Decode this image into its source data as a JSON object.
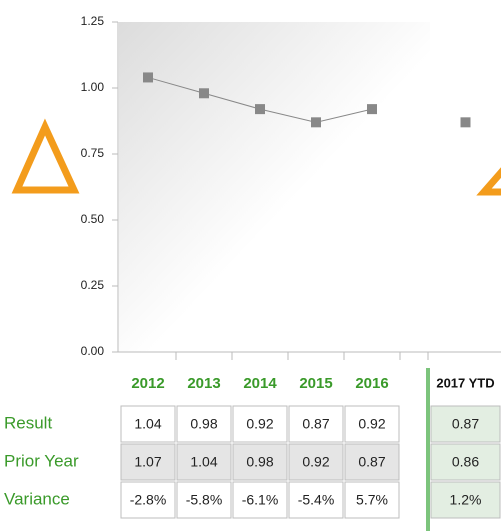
{
  "chart_data": {
    "type": "line",
    "categories": [
      "2012",
      "2013",
      "2014",
      "2015",
      "2016",
      "2017 YTD"
    ],
    "values": [
      1.04,
      0.98,
      0.92,
      0.87,
      0.92,
      0.87
    ],
    "color": "#888888",
    "ylim": [
      0,
      1.25
    ],
    "yticks": [
      {
        "value": 0,
        "label": "0.00"
      },
      {
        "value": 0.25,
        "label": "0.25"
      },
      {
        "value": 0.5,
        "label": "0.50"
      },
      {
        "value": 0.75,
        "label": "0.75"
      },
      {
        "value": 1,
        "label": "1.00"
      },
      {
        "value": 1.25,
        "label": "1.25"
      }
    ]
  },
  "table": {
    "rows": [
      {
        "label": "Result",
        "cells": [
          "1.04",
          "0.98",
          "0.92",
          "0.87",
          "0.92",
          "0.87"
        ]
      },
      {
        "label": "Prior Year",
        "cells": [
          "1.07",
          "1.04",
          "0.98",
          "0.92",
          "0.87",
          "0.86"
        ]
      },
      {
        "label": "Variance",
        "cells": [
          "-2.8%",
          "-5.8%",
          "-6.1%",
          "-5.4%",
          "5.7%",
          "1.2%"
        ]
      }
    ]
  }
}
